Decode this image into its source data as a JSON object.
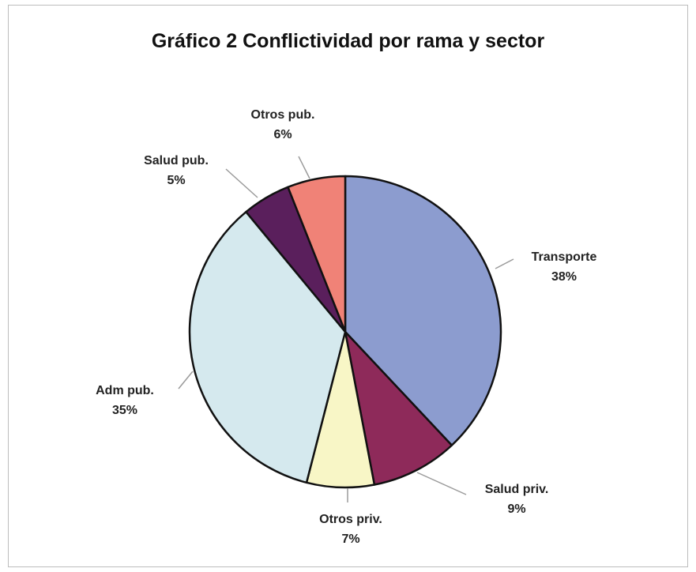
{
  "chart_data": {
    "type": "pie",
    "title": "Gráfico 2 Conflictividad por rama y sector",
    "slices": [
      {
        "label": "Transporte",
        "percent_label": "38%",
        "value": 38,
        "color": "#8c9ccf"
      },
      {
        "label": "Salud priv.",
        "percent_label": "9%",
        "value": 9,
        "color": "#8e2a5a"
      },
      {
        "label": "Otros priv.",
        "percent_label": "7%",
        "value": 7,
        "color": "#f8f6c6"
      },
      {
        "label": "Adm pub.",
        "percent_label": "35%",
        "value": 35,
        "color": "#d5e9ee"
      },
      {
        "label": "Salud pub.",
        "percent_label": "5%",
        "value": 5,
        "color": "#5a1f5c"
      },
      {
        "label": "Otros pub.",
        "percent_label": "6%",
        "value": 6,
        "color": "#f08277"
      }
    ],
    "start": "top",
    "direction": "clockwise",
    "legend": "none"
  }
}
